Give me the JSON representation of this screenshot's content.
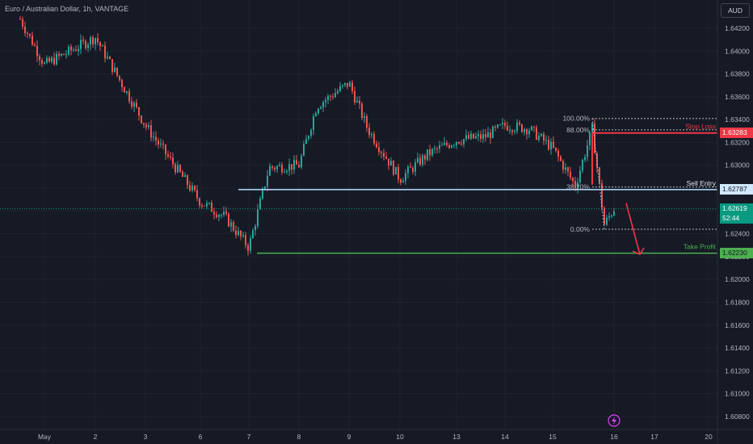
{
  "header": {
    "title": "Euro / Australian Dollar, 1h, VANTAGE",
    "currency": "AUD"
  },
  "colors": {
    "background": "#161a25",
    "bull": "#26a69a",
    "bear": "#ef5350",
    "entry": "#b2dfff",
    "stop": "#f23645",
    "target": "#4caf50",
    "fib": "#b2b5be"
  },
  "chart_data": {
    "type": "candlestick",
    "y_ticks": [
      "1.64200",
      "1.64000",
      "1.63800",
      "1.63600",
      "1.63400",
      "1.63200",
      "1.63000",
      "1.62800",
      "1.62600",
      "1.62400",
      "1.62200",
      "1.62000",
      "1.61800",
      "1.61600",
      "1.61400",
      "1.61200",
      "1.61000",
      "1.60800"
    ],
    "x_ticks": [
      "May",
      "2",
      "3",
      "6",
      "7",
      "8",
      "9",
      "10",
      "13",
      "14",
      "15",
      "16",
      "17",
      "20"
    ],
    "ylim": [
      1.6075,
      1.6432
    ],
    "levels": {
      "stop_loss": {
        "label": "Stop Loss",
        "price": "1.63283"
      },
      "sell_entry": {
        "label": "Sell Entry",
        "price": "1.62787"
      },
      "take_profit": {
        "label": "Take Profit",
        "price": "1.62230"
      },
      "current": {
        "price": "1.62619",
        "countdown": "52:44"
      }
    },
    "fib_levels": [
      {
        "label": "100.00%",
        "value": 1.6341
      },
      {
        "label": "88.00%",
        "value": 1.6331
      },
      {
        "label": "38.20%",
        "value": 1.6281
      },
      {
        "label": "0.00%",
        "value": 1.6244
      }
    ],
    "key_points": [
      {
        "x": "May",
        "y": 1.6388
      },
      {
        "x": "1",
        "y": 1.6428
      },
      {
        "x": "2",
        "y": 1.6412
      },
      {
        "x": "3",
        "y": 1.6335
      },
      {
        "x": "3.5",
        "y": 1.632
      },
      {
        "x": "6",
        "y": 1.6268
      },
      {
        "x": "6.5",
        "y": 1.6255
      },
      {
        "x": "7",
        "y": 1.6228
      },
      {
        "x": "7.5",
        "y": 1.6298
      },
      {
        "x": "8",
        "y": 1.63
      },
      {
        "x": "8.5",
        "y": 1.6352
      },
      {
        "x": "9",
        "y": 1.6372
      },
      {
        "x": "9.5",
        "y": 1.6332
      },
      {
        "x": "10",
        "y": 1.6288
      },
      {
        "x": "10.5",
        "y": 1.631
      },
      {
        "x": "13",
        "y": 1.6322
      },
      {
        "x": "13.5",
        "y": 1.6325
      },
      {
        "x": "14",
        "y": 1.6335
      },
      {
        "x": "14.5",
        "y": 1.6332
      },
      {
        "x": "15",
        "y": 1.6315
      },
      {
        "x": "15.3",
        "y": 1.6282
      },
      {
        "x": "15.5",
        "y": 1.6332
      },
      {
        "x": "15.8",
        "y": 1.6248
      },
      {
        "x": "16",
        "y": 1.6262
      }
    ]
  }
}
